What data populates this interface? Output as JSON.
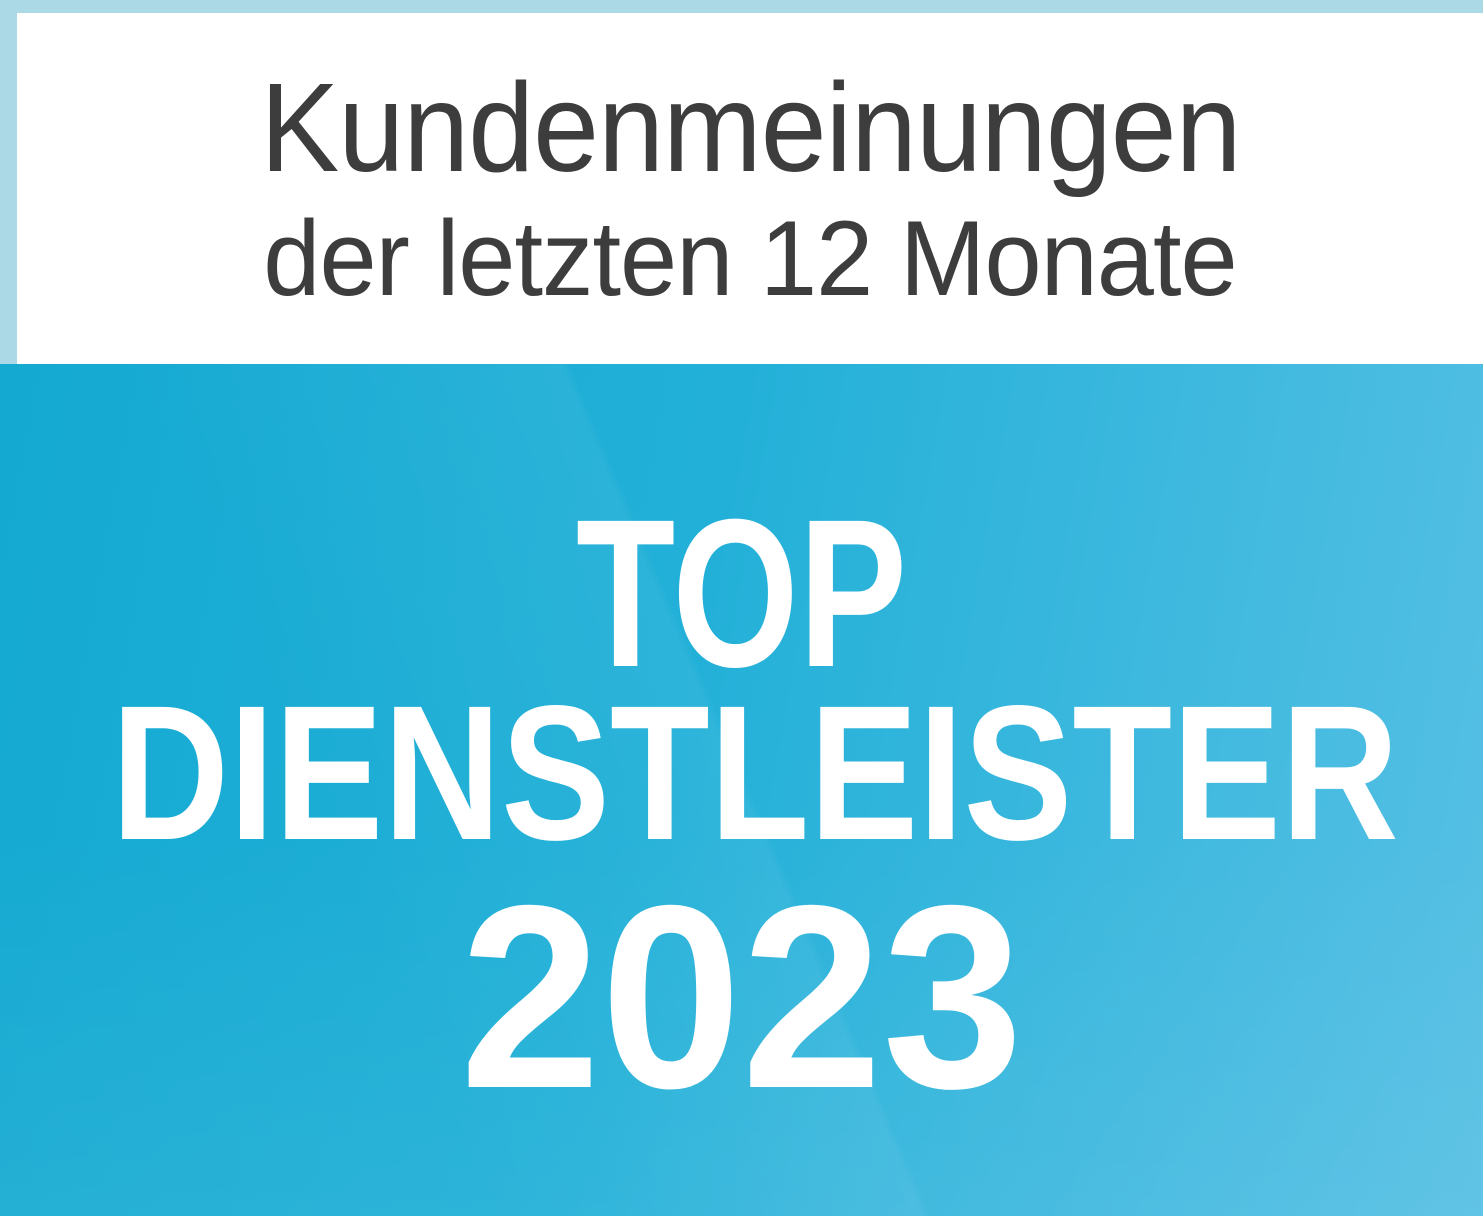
{
  "badge": {
    "header": {
      "title": "Kundenmeinungen",
      "subtitle": "der letzten 12 Monate"
    },
    "award": {
      "line1": "TOP",
      "line2": "DIENSTLEISTER",
      "line3": "2023"
    },
    "colors": {
      "frame_light_blue": "#abd9e5",
      "panel_white": "#ffffff",
      "header_text": "#3d3d3d",
      "award_text": "#ffffff",
      "award_gradient_start": "#14a9d1",
      "award_gradient_mid": "#22b0d8",
      "award_gradient_end": "#57c0e4"
    }
  }
}
